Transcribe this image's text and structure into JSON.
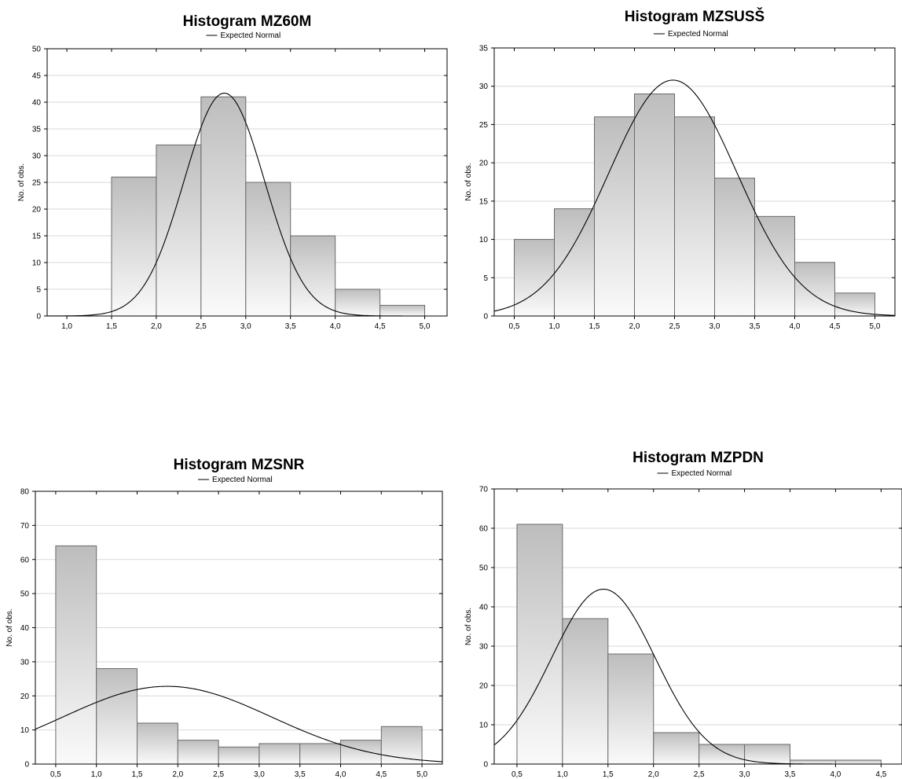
{
  "legend_label": "Expected Normal",
  "colors": {
    "bar_top": "#bdbdbd",
    "bar_bottom": "#fafafa",
    "bar_stroke": "#6a6a6a",
    "grid": "#d9d9d9",
    "curve": "#000000"
  },
  "chart_data": [
    {
      "type": "bar",
      "title": "Histogram MZ60M",
      "ylabel": "No. of obs.",
      "xlabel": "",
      "ylim": [
        0,
        50
      ],
      "yticks": [
        0,
        5,
        10,
        15,
        20,
        25,
        30,
        35,
        40,
        45,
        50
      ],
      "xlim": [
        0.78,
        5.25
      ],
      "xticks": [
        "1,0",
        "1,5",
        "2,0",
        "2,5",
        "3,0",
        "3,5",
        "4,0",
        "4,5",
        "5,0"
      ],
      "xtick_values": [
        1.0,
        1.5,
        2.0,
        2.5,
        3.0,
        3.5,
        4.0,
        4.5,
        5.0
      ],
      "bins": [
        [
          1.5,
          2.0
        ],
        [
          2.0,
          2.5
        ],
        [
          2.5,
          3.0
        ],
        [
          3.0,
          3.5
        ],
        [
          3.5,
          4.0
        ],
        [
          4.0,
          4.5
        ],
        [
          4.5,
          5.0
        ]
      ],
      "values": [
        26,
        32,
        41,
        25,
        15,
        5,
        2
      ],
      "normal": {
        "mean": 2.76,
        "peak": 41.7,
        "sd": 0.45
      },
      "grid": true,
      "legend_position": "top-center"
    },
    {
      "type": "bar",
      "title": "Histogram MZSUSŠ",
      "ylabel": "No. of obs.",
      "xlabel": "",
      "ylim": [
        0,
        35
      ],
      "yticks": [
        0,
        5,
        10,
        15,
        20,
        25,
        30,
        35
      ],
      "xlim": [
        0.25,
        5.25
      ],
      "xticks": [
        "0,5",
        "1,0",
        "1,5",
        "2,0",
        "2,5",
        "3,0",
        "3,5",
        "4,0",
        "4,5",
        "5,0"
      ],
      "xtick_values": [
        0.5,
        1.0,
        1.5,
        2.0,
        2.5,
        3.0,
        3.5,
        4.0,
        4.5,
        5.0
      ],
      "bins": [
        [
          0.5,
          1.0
        ],
        [
          1.0,
          1.5
        ],
        [
          1.5,
          2.0
        ],
        [
          2.0,
          2.5
        ],
        [
          2.5,
          3.0
        ],
        [
          3.0,
          3.5
        ],
        [
          3.5,
          4.0
        ],
        [
          4.0,
          4.5
        ],
        [
          4.5,
          5.0
        ]
      ],
      "values": [
        10,
        14,
        26,
        29,
        26,
        18,
        13,
        7,
        3
      ],
      "normal": {
        "mean": 2.48,
        "peak": 30.8,
        "sd": 0.8
      },
      "grid": true,
      "legend_position": "top-center"
    },
    {
      "type": "bar",
      "title": "Histogram MZSNR",
      "ylabel": "No. of obs.",
      "xlabel": "",
      "ylim": [
        0,
        80
      ],
      "yticks": [
        0,
        10,
        20,
        30,
        40,
        50,
        60,
        70,
        80
      ],
      "xlim": [
        0.25,
        5.25
      ],
      "xticks": [
        "0,5",
        "1,0",
        "1,5",
        "2,0",
        "2,5",
        "3,0",
        "3,5",
        "4,0",
        "4,5",
        "5,0"
      ],
      "xtick_values": [
        0.5,
        1.0,
        1.5,
        2.0,
        2.5,
        3.0,
        3.5,
        4.0,
        4.5,
        5.0
      ],
      "bins": [
        [
          0.5,
          1.0
        ],
        [
          1.0,
          1.5
        ],
        [
          1.5,
          2.0
        ],
        [
          2.0,
          2.5
        ],
        [
          2.5,
          3.0
        ],
        [
          3.0,
          3.5
        ],
        [
          3.5,
          4.0
        ],
        [
          4.0,
          4.5
        ],
        [
          4.5,
          5.0
        ]
      ],
      "values": [
        64,
        28,
        12,
        7,
        5,
        6,
        6,
        7,
        11
      ],
      "normal": {
        "mean": 1.87,
        "peak": 22.8,
        "sd": 1.28
      },
      "grid": true,
      "legend_position": "top-center"
    },
    {
      "type": "bar",
      "title": "Histogram MZPDN",
      "ylabel": "No. of obs.",
      "xlabel": "",
      "ylim": [
        0,
        70
      ],
      "yticks": [
        0,
        10,
        20,
        30,
        40,
        50,
        60,
        70
      ],
      "xlim": [
        0.25,
        4.73
      ],
      "xticks": [
        "0,5",
        "1,0",
        "1,5",
        "2,0",
        "2,5",
        "3,0",
        "3,5",
        "4,0",
        "4,5"
      ],
      "xtick_values": [
        0.5,
        1.0,
        1.5,
        2.0,
        2.5,
        3.0,
        3.5,
        4.0,
        4.5
      ],
      "bins": [
        [
          0.5,
          1.0
        ],
        [
          1.0,
          1.5
        ],
        [
          1.5,
          2.0
        ],
        [
          2.0,
          2.5
        ],
        [
          2.5,
          3.0
        ],
        [
          3.0,
          3.5
        ],
        [
          3.5,
          4.0
        ],
        [
          4.0,
          4.5
        ]
      ],
      "values": [
        61,
        37,
        28,
        8,
        5,
        5,
        1,
        1
      ],
      "normal": {
        "mean": 1.45,
        "peak": 44.5,
        "sd": 0.57
      },
      "grid": true,
      "legend_position": "top-center"
    }
  ]
}
